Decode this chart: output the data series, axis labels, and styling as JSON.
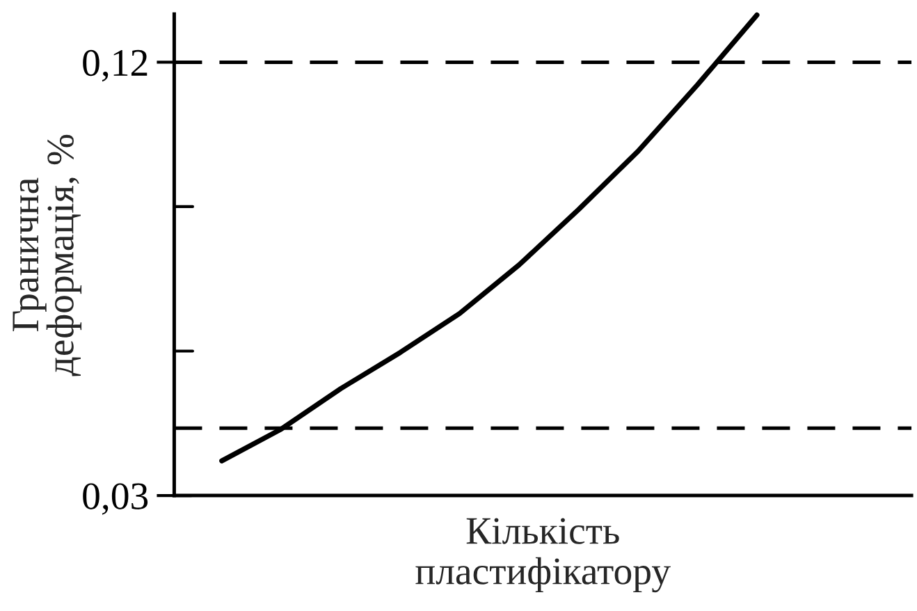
{
  "chart_data": {
    "type": "line",
    "xlabel": "Кількість\nпластифікатору",
    "ylabel": "Гранична\nдеформація, %",
    "categories": [
      null,
      null,
      null,
      null,
      null,
      null,
      null,
      null,
      null,
      null
    ],
    "series": [
      {
        "color": "#000000",
        "values": [
          0.0372,
          0.0438,
          0.0522,
          0.0597,
          0.0678,
          0.0779,
          0.0894,
          0.1015,
          0.1153,
          0.1298
        ]
      }
    ],
    "ylim": [
      0.03,
      0.13
    ],
    "yticks": [
      {
        "value": 0.03,
        "label": "0,03"
      },
      {
        "value": 0.06,
        "label": null
      },
      {
        "value": 0.09,
        "label": null
      },
      {
        "value": 0.12,
        "label": "0,12"
      }
    ],
    "ref_lines": [
      {
        "axis": "y",
        "value": 0.12,
        "label": null,
        "color": "#000000",
        "line_style": "dashed"
      },
      {
        "axis": "y",
        "value": 0.044,
        "label": null,
        "color": "#000000",
        "line_style": "dashed"
      }
    ],
    "grid": false,
    "legend": false,
    "marker": "none",
    "line_style": "solid"
  }
}
